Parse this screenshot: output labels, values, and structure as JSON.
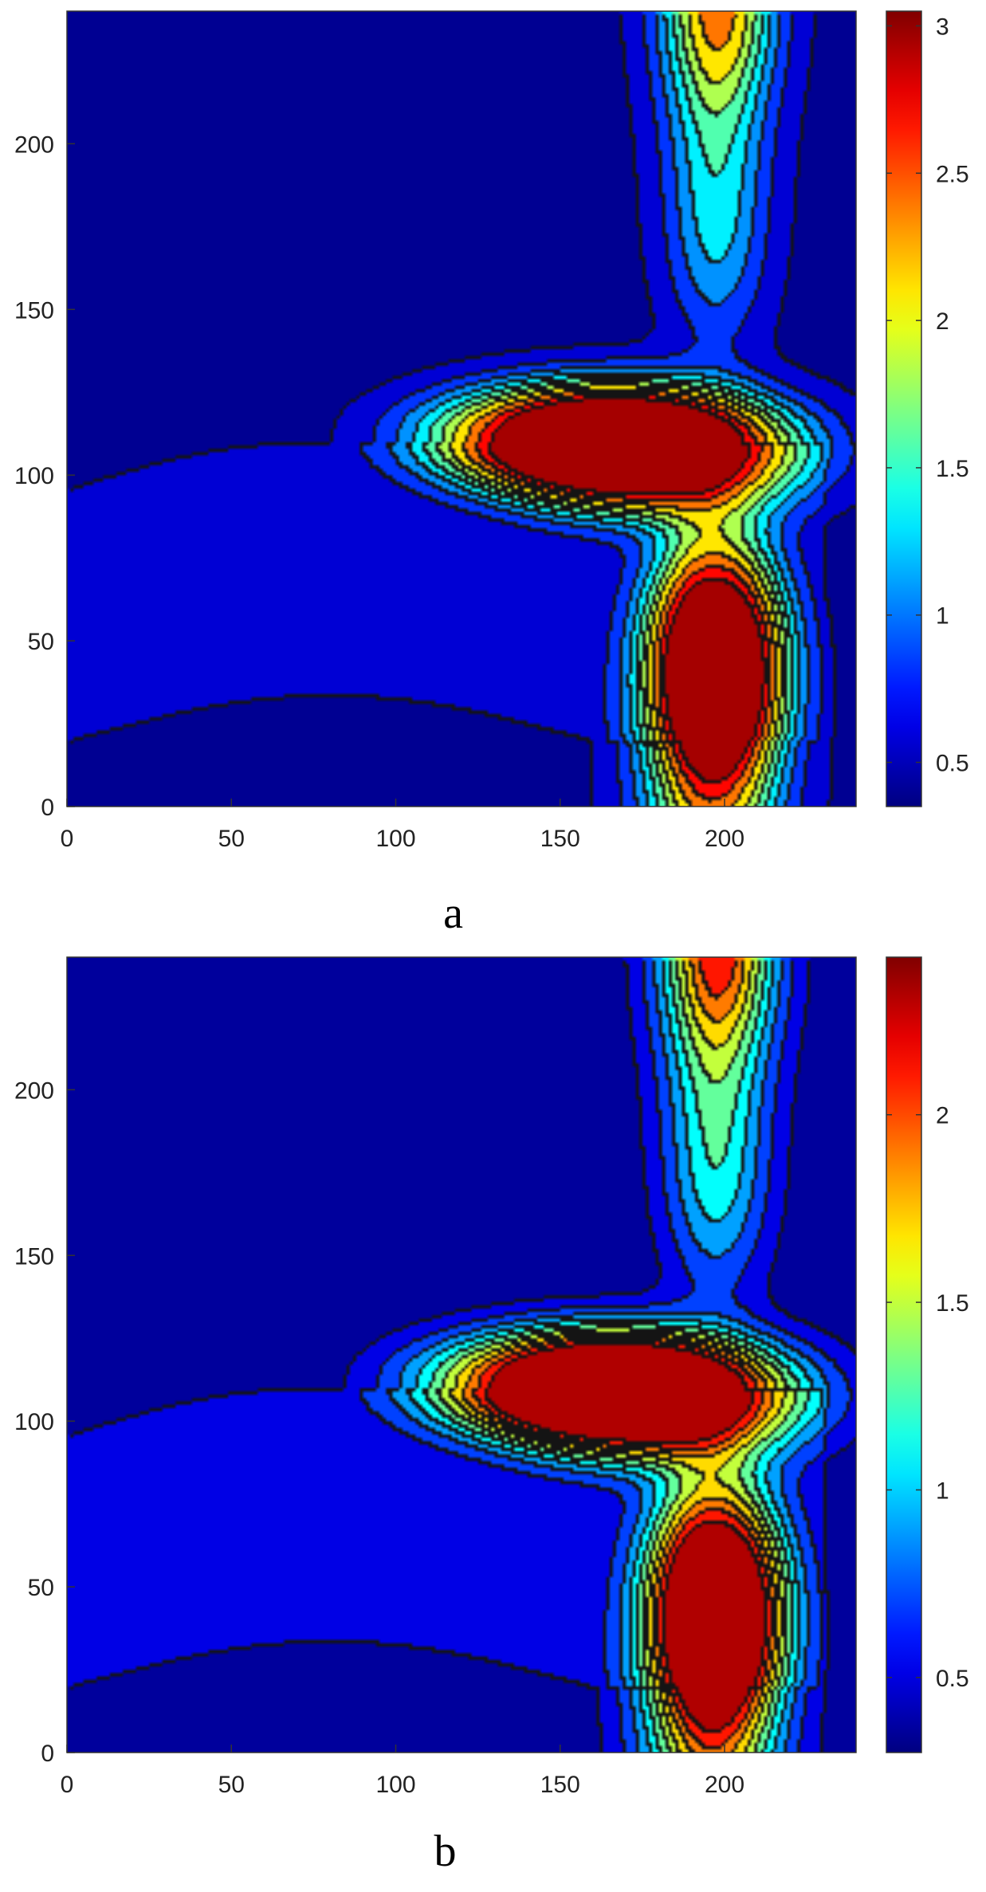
{
  "figure": {
    "panels": [
      {
        "id": "a",
        "caption": "a"
      },
      {
        "id": "b",
        "caption": "b"
      }
    ]
  },
  "chart_data": [
    {
      "type": "heatmap",
      "subtype": "filled-contour",
      "panel": "a",
      "title": "",
      "xlabel": "",
      "ylabel": "",
      "xlim": [
        0,
        240
      ],
      "ylim": [
        0,
        240
      ],
      "xticks": [
        0,
        50,
        100,
        150,
        200
      ],
      "yticks": [
        0,
        50,
        100,
        150,
        200
      ],
      "colormap": "jet",
      "colorbar": {
        "range": [
          0.35,
          3.05
        ],
        "ticks": [
          0.5,
          1,
          1.5,
          2,
          2.5,
          3
        ]
      },
      "contour_levels": [
        0.45,
        0.7,
        0.95,
        1.2,
        1.45,
        1.7,
        1.95,
        2.25,
        2.55,
        2.85
      ],
      "peaks": [
        {
          "x": 188,
          "y": 80,
          "value": 3.05
        },
        {
          "x": 198,
          "y": 240,
          "value": 2.35
        }
      ],
      "grid": false
    },
    {
      "type": "heatmap",
      "subtype": "filled-contour",
      "panel": "b",
      "title": "",
      "xlabel": "",
      "ylabel": "",
      "xlim": [
        0,
        240
      ],
      "ylim": [
        0,
        240
      ],
      "xticks": [
        0,
        50,
        100,
        150,
        200
      ],
      "yticks": [
        0,
        50,
        100,
        150,
        200
      ],
      "colormap": "jet",
      "colorbar": {
        "range": [
          0.3,
          2.42
        ],
        "ticks": [
          0.5,
          1,
          1.5,
          2
        ]
      },
      "contour_levels": [
        0.42,
        0.6,
        0.8,
        1.0,
        1.2,
        1.4,
        1.6,
        1.8,
        2.0,
        2.22
      ],
      "peaks": [
        {
          "x": 188,
          "y": 80,
          "value": 2.42
        },
        {
          "x": 198,
          "y": 240,
          "value": 2.1
        }
      ],
      "grid": false
    }
  ]
}
